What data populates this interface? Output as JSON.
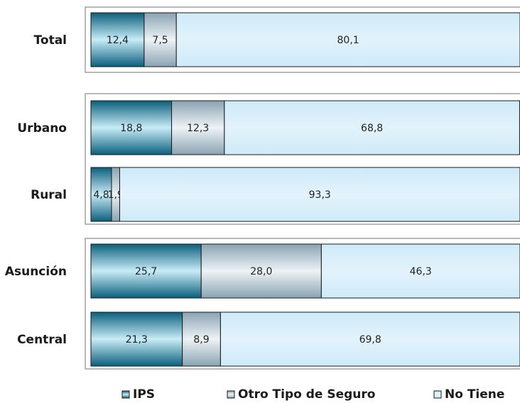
{
  "chart_data": {
    "type": "bar",
    "orientation": "horizontal",
    "stacked": true,
    "percent_stacked": true,
    "xlim": [
      0,
      100
    ],
    "grid": false,
    "legend_position": "bottom",
    "categories": [
      "Total",
      "Urbano",
      "Rural",
      "Asunción",
      "Central"
    ],
    "groups": [
      [
        "Total"
      ],
      [
        "Urbano",
        "Rural"
      ],
      [
        "Asunción",
        "Central"
      ]
    ],
    "series": [
      {
        "name": "IPS",
        "color": "#1a7fa0",
        "values": [
          12.4,
          18.8,
          4.8,
          25.7,
          21.3
        ]
      },
      {
        "name": "Otro Tipo de Seguro",
        "color": "#b8c8d2",
        "values": [
          7.5,
          12.3,
          1.9,
          28.0,
          8.9
        ]
      },
      {
        "name": "No Tiene",
        "color": "#d2ecfa",
        "values": [
          80.1,
          68.8,
          93.3,
          46.3,
          69.8
        ]
      }
    ],
    "value_labels": [
      [
        "12,4",
        "18,8",
        "4,8",
        "25,7",
        "21,3"
      ],
      [
        "7,5",
        "12,3",
        "1,9",
        "28,0",
        "8,9"
      ],
      [
        "80,1",
        "68,8",
        "93,3",
        "46,3",
        "69,8"
      ]
    ]
  }
}
